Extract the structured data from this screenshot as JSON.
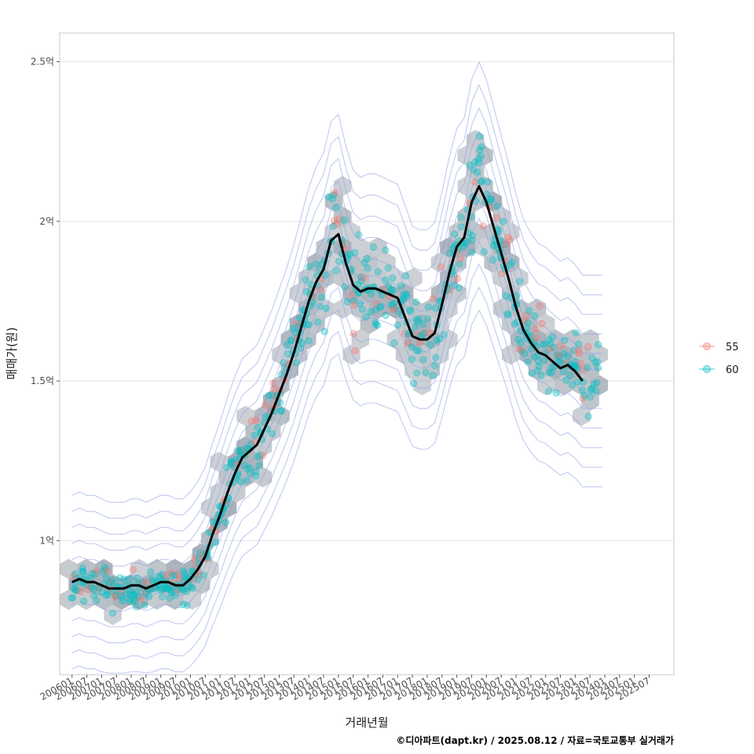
{
  "chart_data": {
    "type": "scatter",
    "xlabel": "거래년월",
    "ylabel": "매매가(원)",
    "caption": "©디아파트(dapt.kr) / 2025.08.12 / 자료=국토교통부 실거래가",
    "x_ticks": [
      "200601",
      "200607",
      "200701",
      "200707",
      "200801",
      "200807",
      "200901",
      "200907",
      "201001",
      "201007",
      "201101",
      "201107",
      "201201",
      "201207",
      "201301",
      "201307",
      "201401",
      "201407",
      "201501",
      "201507",
      "201601",
      "201607",
      "201701",
      "201707",
      "201801",
      "201807",
      "201901",
      "201907",
      "202001",
      "202007",
      "202101",
      "202107",
      "202201",
      "202207",
      "202301",
      "202307",
      "202401",
      "202407",
      "202501",
      "202507"
    ],
    "y_ticks": [
      {
        "value": 1.0,
        "label": "1억"
      },
      {
        "value": 1.5,
        "label": "1.5억"
      },
      {
        "value": 2.0,
        "label": "2억"
      },
      {
        "value": 2.5,
        "label": "2.5억"
      }
    ],
    "xlim": [
      "2005-08",
      "2026-05"
    ],
    "ylim": [
      0.58,
      2.59
    ],
    "y_unit": "억",
    "grid": true,
    "legend_position": "right",
    "legend": [
      {
        "name": "55",
        "color": "#F8766D"
      },
      {
        "name": "60",
        "color": "#00BFC4"
      }
    ],
    "hexbin_color": "#9aa3ad",
    "contour_color": "#8c9ee8",
    "trend_color": "#000000",
    "trend_line": [
      [
        "2006-01",
        0.87
      ],
      [
        "2006-04",
        0.88
      ],
      [
        "2006-07",
        0.87
      ],
      [
        "2006-10",
        0.87
      ],
      [
        "2007-01",
        0.86
      ],
      [
        "2007-04",
        0.85
      ],
      [
        "2007-07",
        0.85
      ],
      [
        "2007-10",
        0.85
      ],
      [
        "2008-01",
        0.86
      ],
      [
        "2008-04",
        0.86
      ],
      [
        "2008-07",
        0.85
      ],
      [
        "2008-10",
        0.86
      ],
      [
        "2009-01",
        0.87
      ],
      [
        "2009-04",
        0.87
      ],
      [
        "2009-07",
        0.86
      ],
      [
        "2009-10",
        0.86
      ],
      [
        "2010-01",
        0.88
      ],
      [
        "2010-04",
        0.91
      ],
      [
        "2010-07",
        0.95
      ],
      [
        "2010-10",
        1.02
      ],
      [
        "2011-01",
        1.08
      ],
      [
        "2011-04",
        1.15
      ],
      [
        "2011-07",
        1.21
      ],
      [
        "2011-10",
        1.26
      ],
      [
        "2012-01",
        1.28
      ],
      [
        "2012-04",
        1.3
      ],
      [
        "2012-07",
        1.35
      ],
      [
        "2012-10",
        1.4
      ],
      [
        "2013-01",
        1.46
      ],
      [
        "2013-04",
        1.52
      ],
      [
        "2013-07",
        1.59
      ],
      [
        "2013-10",
        1.67
      ],
      [
        "2014-01",
        1.75
      ],
      [
        "2014-04",
        1.81
      ],
      [
        "2014-07",
        1.85
      ],
      [
        "2014-10",
        1.94
      ],
      [
        "2015-01",
        1.96
      ],
      [
        "2015-04",
        1.87
      ],
      [
        "2015-07",
        1.8
      ],
      [
        "2015-10",
        1.78
      ],
      [
        "2016-01",
        1.79
      ],
      [
        "2016-04",
        1.79
      ],
      [
        "2016-07",
        1.78
      ],
      [
        "2016-10",
        1.77
      ],
      [
        "2017-01",
        1.76
      ],
      [
        "2017-04",
        1.7
      ],
      [
        "2017-07",
        1.64
      ],
      [
        "2017-10",
        1.63
      ],
      [
        "2018-01",
        1.63
      ],
      [
        "2018-04",
        1.65
      ],
      [
        "2018-07",
        1.74
      ],
      [
        "2018-10",
        1.84
      ],
      [
        "2019-01",
        1.92
      ],
      [
        "2019-04",
        1.95
      ],
      [
        "2019-07",
        2.06
      ],
      [
        "2019-10",
        2.11
      ],
      [
        "2020-01",
        2.06
      ],
      [
        "2020-04",
        1.98
      ],
      [
        "2020-07",
        1.9
      ],
      [
        "2020-10",
        1.82
      ],
      [
        "2021-01",
        1.73
      ],
      [
        "2021-04",
        1.66
      ],
      [
        "2021-07",
        1.62
      ],
      [
        "2021-10",
        1.59
      ],
      [
        "2022-01",
        1.58
      ],
      [
        "2022-04",
        1.56
      ],
      [
        "2022-07",
        1.54
      ],
      [
        "2022-10",
        1.55
      ],
      [
        "2023-01",
        1.53
      ],
      [
        "2023-04",
        1.5
      ]
    ]
  }
}
